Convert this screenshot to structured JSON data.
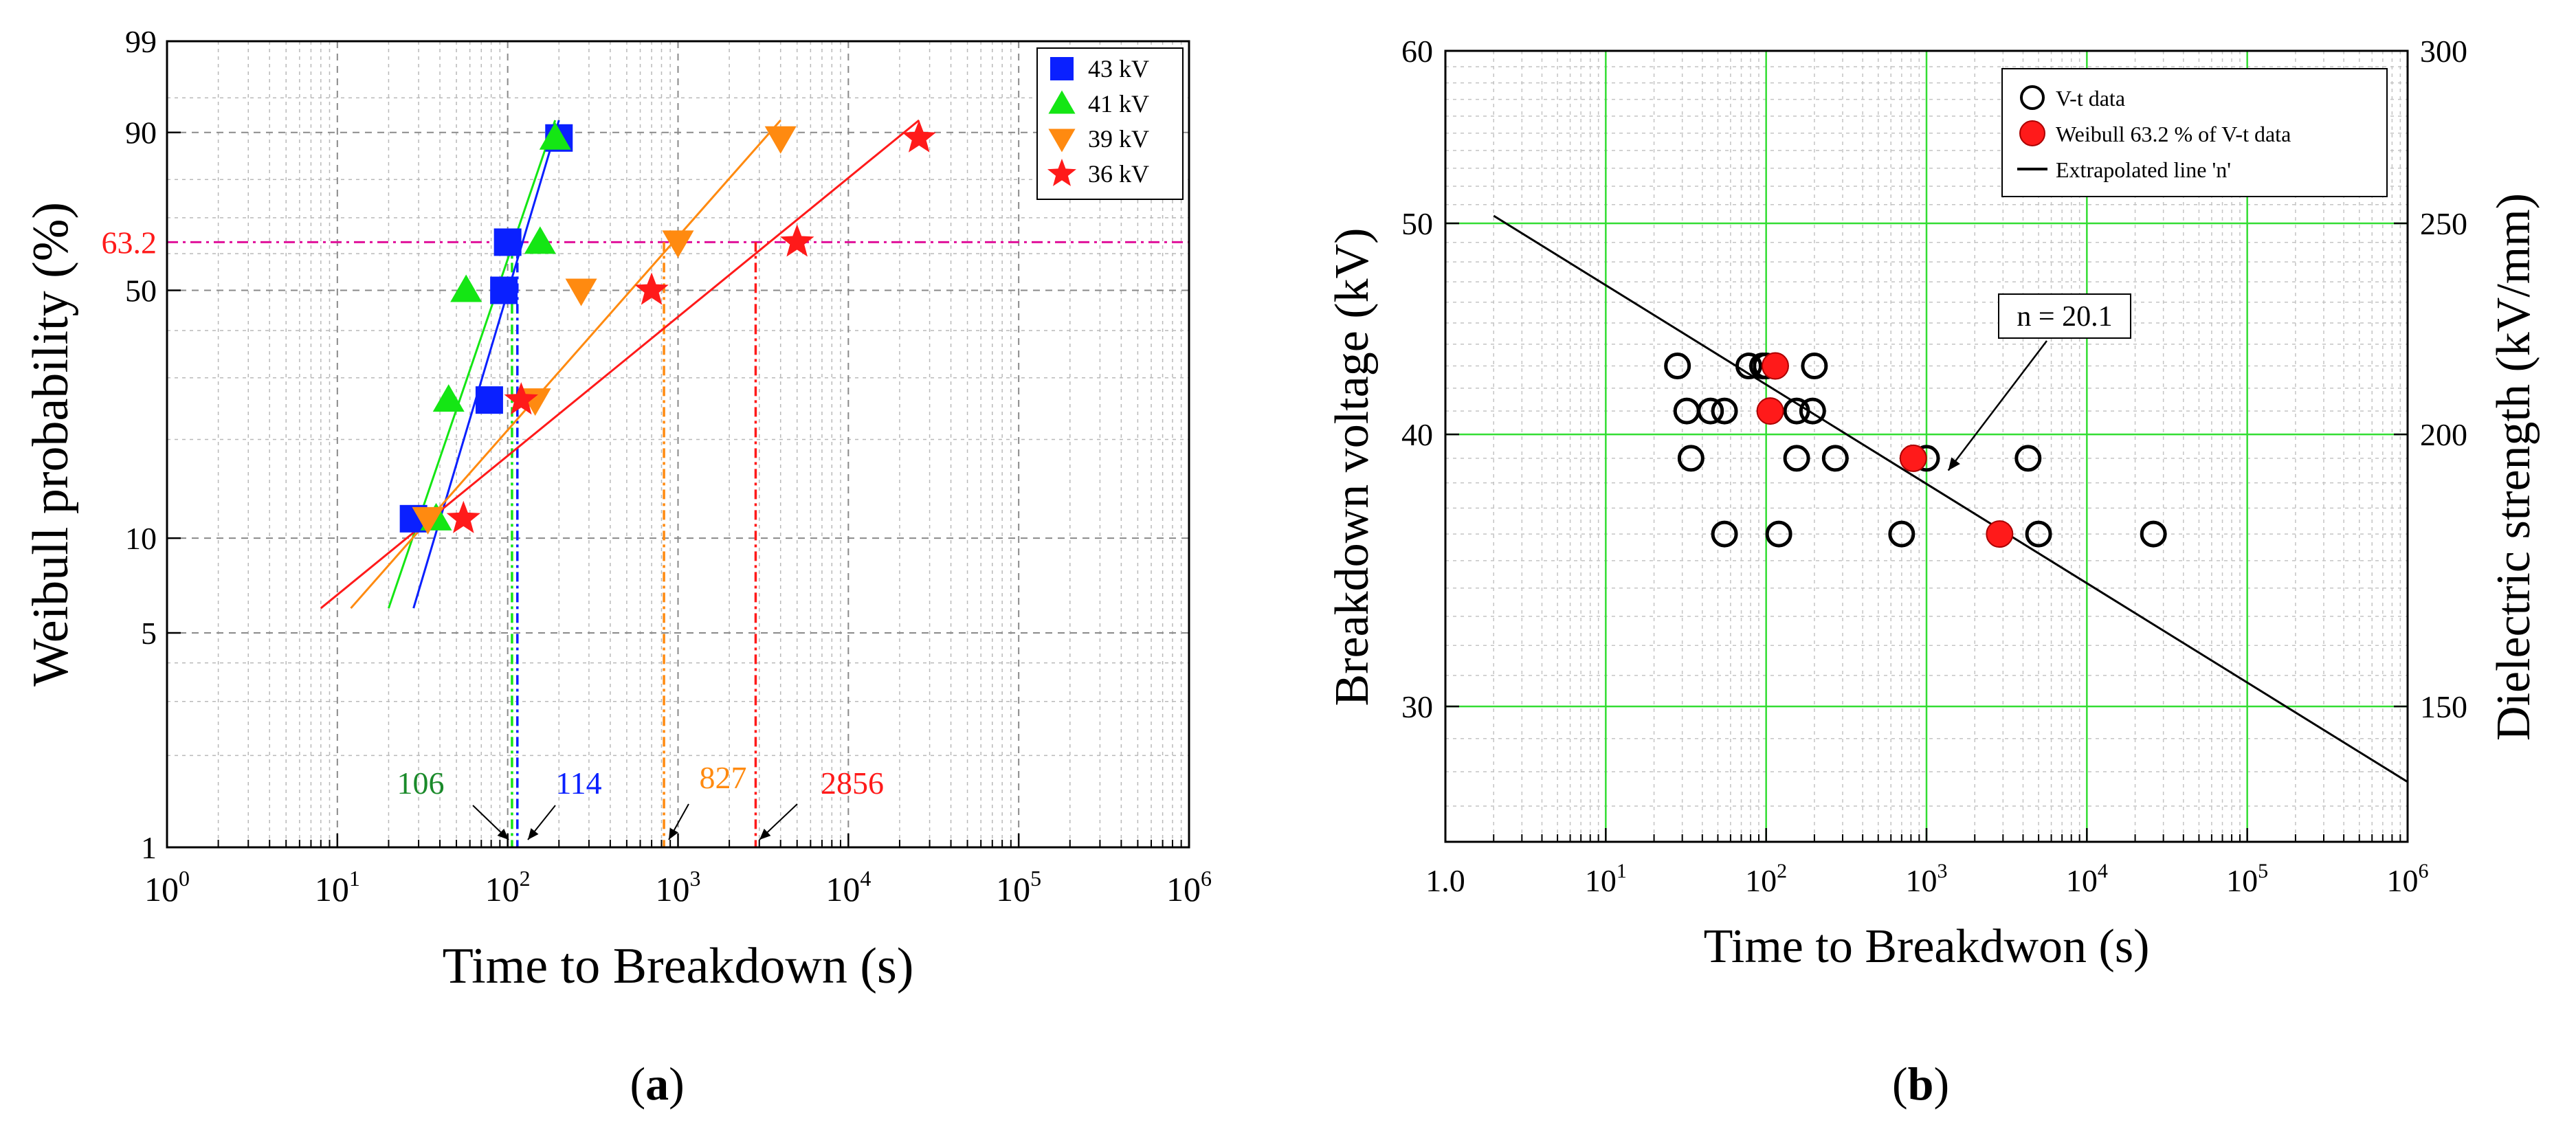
{
  "colors": {
    "s43": "#0a20ff",
    "s41": "#14e614",
    "s39": "#ff8a10",
    "s36": "#ff1a1a",
    "ref": "#e0109a",
    "grid_a": "#b9b9b9",
    "grid_b": "#33dd33"
  },
  "chart_data": [
    {
      "id": "a",
      "panel_label": "a",
      "type": "scatter",
      "xscale": "log10",
      "yscale": "weibull",
      "xlabel": "Time to Breakdown (s)",
      "ylabel": "Weibull probability (%)",
      "xlim": [
        1,
        1000000
      ],
      "ylim": [
        1,
        99
      ],
      "x_ticks": [
        {
          "value": 1,
          "base": "10",
          "exp": "0"
        },
        {
          "value": 10,
          "base": "10",
          "exp": "1"
        },
        {
          "value": 100,
          "base": "10",
          "exp": "2"
        },
        {
          "value": 1000,
          "base": "10",
          "exp": "3"
        },
        {
          "value": 10000,
          "base": "10",
          "exp": "4"
        },
        {
          "value": 100000,
          "base": "10",
          "exp": "5"
        },
        {
          "value": 1000000,
          "base": "10",
          "exp": "6"
        }
      ],
      "y_ticks": [
        {
          "value": 1,
          "label": "1"
        },
        {
          "value": 5,
          "label": "5"
        },
        {
          "value": 10,
          "label": "10"
        },
        {
          "value": 50,
          "label": "50"
        },
        {
          "value": 90,
          "label": "90"
        },
        {
          "value": 99,
          "label": "99"
        }
      ],
      "ref_line": {
        "value": 63.2,
        "label": "63.2"
      },
      "legend_position": "top-right",
      "series": [
        {
          "name": "43 kV",
          "marker": "square",
          "color_key": "s43",
          "points": [
            [
              28,
              11.5
            ],
            [
              78,
              26
            ],
            [
              95,
              50
            ],
            [
              100,
              63.2
            ],
            [
              200,
              89
            ]
          ],
          "fit": [
            [
              28,
              6
            ],
            [
              200,
              92
            ]
          ],
          "eta": 114,
          "eta_label": "114"
        },
        {
          "name": "41 kV",
          "marker": "triangle",
          "color_key": "s41",
          "points": [
            [
              38,
              11.5
            ],
            [
              45,
              26
            ],
            [
              57,
              50
            ],
            [
              155,
              63.2
            ],
            [
              190,
              89
            ]
          ],
          "fit": [
            [
              20,
              6
            ],
            [
              190,
              92
            ]
          ],
          "eta": 106,
          "eta_label": "106"
        },
        {
          "name": "39 kV",
          "marker": "triangle-down",
          "color_key": "s39",
          "points": [
            [
              34,
              11.5
            ],
            [
              145,
              26
            ],
            [
              270,
              50
            ],
            [
              1000,
              63.2
            ],
            [
              4000,
              89
            ]
          ],
          "fit": [
            [
              12,
              6
            ],
            [
              4000,
              92
            ]
          ],
          "eta": 827,
          "eta_label": "827"
        },
        {
          "name": "36 kV",
          "marker": "star",
          "color_key": "s36",
          "points": [
            [
              55,
              11.5
            ],
            [
              120,
              26
            ],
            [
              700,
              50
            ],
            [
              5000,
              63.2
            ],
            [
              26000,
              89
            ]
          ],
          "fit": [
            [
              8,
              6
            ],
            [
              26000,
              92
            ]
          ],
          "eta": 2856,
          "eta_label": "2856"
        }
      ]
    },
    {
      "id": "b",
      "panel_label": "b",
      "type": "scatter",
      "xscale": "log10",
      "yscale": "log10",
      "xlabel": "Time to Breakdwon (s)",
      "ylabel": "Breakdown voltage (kV)",
      "ylabel_right": "Dielectric strength (kV/mm)",
      "xlim": [
        1,
        1000000
      ],
      "ylim": [
        26,
        60
      ],
      "x_ticks": [
        {
          "value": 1,
          "base": "1.0",
          "exp": ""
        },
        {
          "value": 10,
          "base": "10",
          "exp": "1"
        },
        {
          "value": 100,
          "base": "10",
          "exp": "2"
        },
        {
          "value": 1000,
          "base": "10",
          "exp": "3"
        },
        {
          "value": 10000,
          "base": "10",
          "exp": "4"
        },
        {
          "value": 100000,
          "base": "10",
          "exp": "5"
        },
        {
          "value": 1000000,
          "base": "10",
          "exp": "6"
        }
      ],
      "y_ticks": [
        {
          "value": 30,
          "label": "30"
        },
        {
          "value": 40,
          "label": "40"
        },
        {
          "value": 50,
          "label": "50"
        },
        {
          "value": 60,
          "label": "60"
        }
      ],
      "y2_ticks": [
        {
          "value": 150,
          "label": "150"
        },
        {
          "value": 200,
          "label": "200"
        },
        {
          "value": 250,
          "label": "250"
        },
        {
          "value": 300,
          "label": "300"
        }
      ],
      "legend_position": "top-right",
      "legend": [
        "V-t data",
        "Weibull 63.2 % of V-t data",
        "Extrapolated line 'n'"
      ],
      "vt_data": [
        [
          28,
          43
        ],
        [
          78,
          43
        ],
        [
          95,
          43
        ],
        [
          100,
          43
        ],
        [
          200,
          43
        ],
        [
          32,
          41
        ],
        [
          45,
          41
        ],
        [
          55,
          41
        ],
        [
          155,
          41
        ],
        [
          195,
          41
        ],
        [
          34,
          39
        ],
        [
          155,
          39
        ],
        [
          270,
          39
        ],
        [
          1000,
          39
        ],
        [
          4300,
          39
        ],
        [
          55,
          36
        ],
        [
          120,
          36
        ],
        [
          700,
          36
        ],
        [
          5000,
          36
        ],
        [
          26000,
          36
        ]
      ],
      "weibull_points": [
        [
          114,
          43
        ],
        [
          106,
          41
        ],
        [
          827,
          39
        ],
        [
          2856,
          36
        ]
      ],
      "fit_line": [
        [
          2,
          50.4
        ],
        [
          1000000,
          27.7
        ]
      ],
      "annotation": {
        "text": "n = 20.1",
        "arrow_to": [
          1100,
          38.0
        ]
      }
    }
  ]
}
